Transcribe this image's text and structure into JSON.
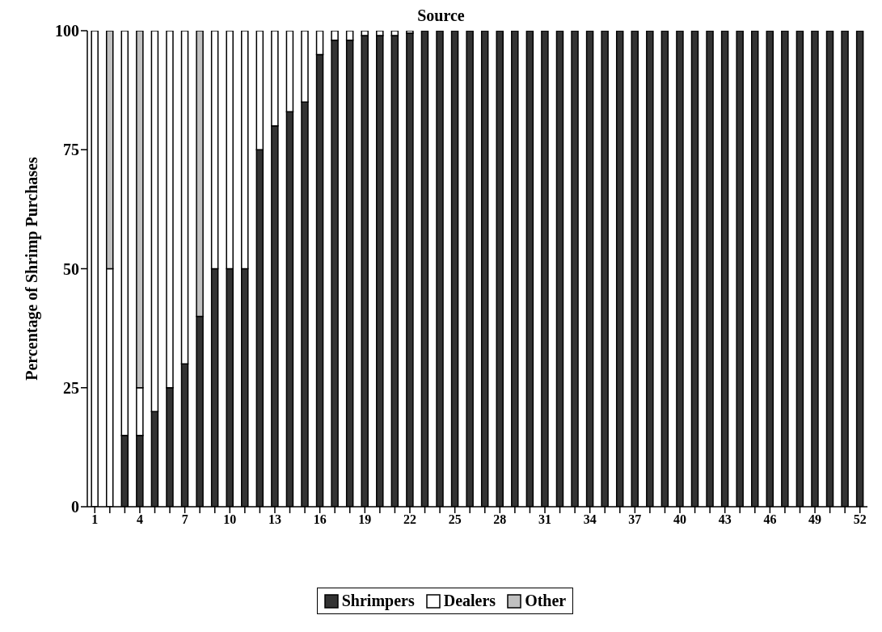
{
  "chart_data": {
    "type": "bar",
    "title": "Source",
    "ylabel": "Percentage of Shrimp Purchases",
    "stacked": true,
    "categories": [
      "1",
      null,
      null,
      "4",
      null,
      null,
      "7",
      null,
      null,
      "10",
      null,
      null,
      "13",
      null,
      null,
      "16",
      null,
      null,
      "19",
      null,
      null,
      "22",
      null,
      null,
      "25",
      null,
      null,
      "28",
      null,
      null,
      "31",
      null,
      null,
      "34",
      null,
      null,
      "37",
      null,
      null,
      "40",
      null,
      null,
      "43",
      null,
      null,
      "46",
      null,
      null,
      "49",
      null,
      null,
      "52"
    ],
    "series": [
      {
        "name": "Shrimpers",
        "color": "#333333",
        "values": [
          0,
          0,
          15,
          15,
          20,
          25,
          30,
          40,
          50,
          50,
          50,
          75,
          80,
          83,
          85,
          95,
          98,
          98,
          99,
          99,
          99,
          99.5,
          100,
          100,
          100,
          100,
          100,
          100,
          100,
          100,
          100,
          100,
          100,
          100,
          100,
          100,
          100,
          100,
          100,
          100,
          100,
          100,
          100,
          100,
          100,
          100,
          100,
          100,
          100,
          100,
          100,
          100
        ]
      },
      {
        "name": "Dealers",
        "color": "#ffffff",
        "values": [
          100,
          50,
          85,
          10,
          80,
          75,
          70,
          0,
          50,
          50,
          50,
          25,
          20,
          17,
          15,
          5,
          2,
          2,
          1,
          1,
          1,
          0.5,
          0,
          0,
          0,
          0,
          0,
          0,
          0,
          0,
          0,
          0,
          0,
          0,
          0,
          0,
          0,
          0,
          0,
          0,
          0,
          0,
          0,
          0,
          0,
          0,
          0,
          0,
          0,
          0,
          0,
          0
        ]
      },
      {
        "name": "Other",
        "color": "#c0c0c0",
        "values": [
          0,
          50,
          0,
          75,
          0,
          0,
          0,
          60,
          0,
          0,
          0,
          0,
          0,
          0,
          0,
          0,
          0,
          0,
          0,
          0,
          0,
          0,
          0,
          0,
          0,
          0,
          0,
          0,
          0,
          0,
          0,
          0,
          0,
          0,
          0,
          0,
          0,
          0,
          0,
          0,
          0,
          0,
          0,
          0,
          0,
          0,
          0,
          0,
          0,
          0,
          0,
          0
        ]
      }
    ],
    "ylim": [
      0,
      100
    ],
    "yticks": [
      0,
      25,
      50,
      75,
      100
    ],
    "grid": false,
    "legend": "bottom"
  }
}
